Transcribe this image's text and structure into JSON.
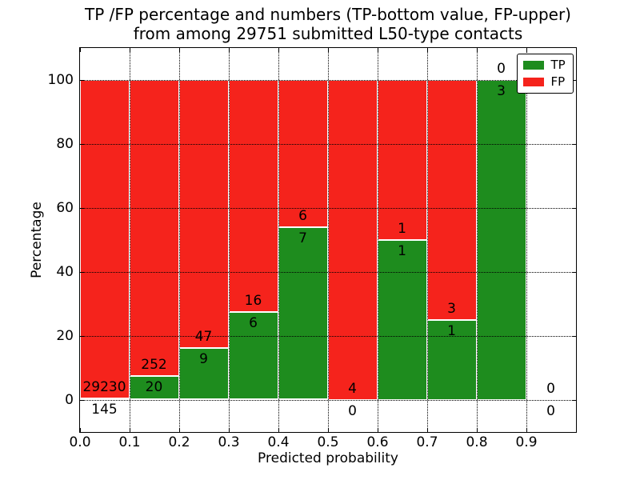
{
  "chart_data": {
    "type": "bar",
    "stacked": true,
    "normalized": "each bin scaled to 100%",
    "title_lines": [
      "TP /FP percentage and numbers (TP-bottom value, FP-upper)",
      "from among 29751 submitted L50-type contacts"
    ],
    "xlabel": "Predicted probability",
    "ylabel": "Percentage",
    "total_contacts": 29751,
    "categories": [
      "0.0",
      "0.1",
      "0.2",
      "0.3",
      "0.4",
      "0.5",
      "0.6",
      "0.7",
      "0.8",
      "0.9"
    ],
    "bin_width": 0.1,
    "bins": [
      {
        "x0": 0.0,
        "x1": 0.1,
        "tp": 145,
        "fp": 29230
      },
      {
        "x0": 0.1,
        "x1": 0.2,
        "tp": 20,
        "fp": 252
      },
      {
        "x0": 0.2,
        "x1": 0.3,
        "tp": 9,
        "fp": 47
      },
      {
        "x0": 0.3,
        "x1": 0.4,
        "tp": 6,
        "fp": 16
      },
      {
        "x0": 0.4,
        "x1": 0.5,
        "tp": 7,
        "fp": 6
      },
      {
        "x0": 0.5,
        "x1": 0.6,
        "tp": 0,
        "fp": 4
      },
      {
        "x0": 0.6,
        "x1": 0.7,
        "tp": 1,
        "fp": 1
      },
      {
        "x0": 0.7,
        "x1": 0.8,
        "tp": 1,
        "fp": 3
      },
      {
        "x0": 0.8,
        "x1": 0.9,
        "tp": 3,
        "fp": 0
      },
      {
        "x0": 0.9,
        "x1": 1.0,
        "tp": 0,
        "fp": 0
      }
    ],
    "series": [
      {
        "name": "TP",
        "color": "#1E8C1E",
        "position": "bottom",
        "values": [
          145,
          20,
          9,
          6,
          7,
          0,
          1,
          1,
          3,
          0
        ]
      },
      {
        "name": "FP",
        "color": "#F5231C",
        "position": "top",
        "values": [
          29230,
          252,
          47,
          16,
          6,
          4,
          1,
          3,
          0,
          0
        ]
      }
    ],
    "legend": {
      "position": "upper right",
      "entries": [
        "TP",
        "FP"
      ]
    },
    "axes": {
      "xlim": [
        0.0,
        1.0
      ],
      "ylim": [
        -10,
        110
      ],
      "x_tick_labels": [
        "0.0",
        "0.1",
        "0.2",
        "0.3",
        "0.4",
        "0.5",
        "0.6",
        "0.7",
        "0.8",
        "0.9"
      ],
      "y_tick_values": [
        0,
        20,
        40,
        60,
        80,
        100
      ],
      "grid_style": "dotted",
      "bar_edge_color": "#FFFFFF"
    }
  }
}
